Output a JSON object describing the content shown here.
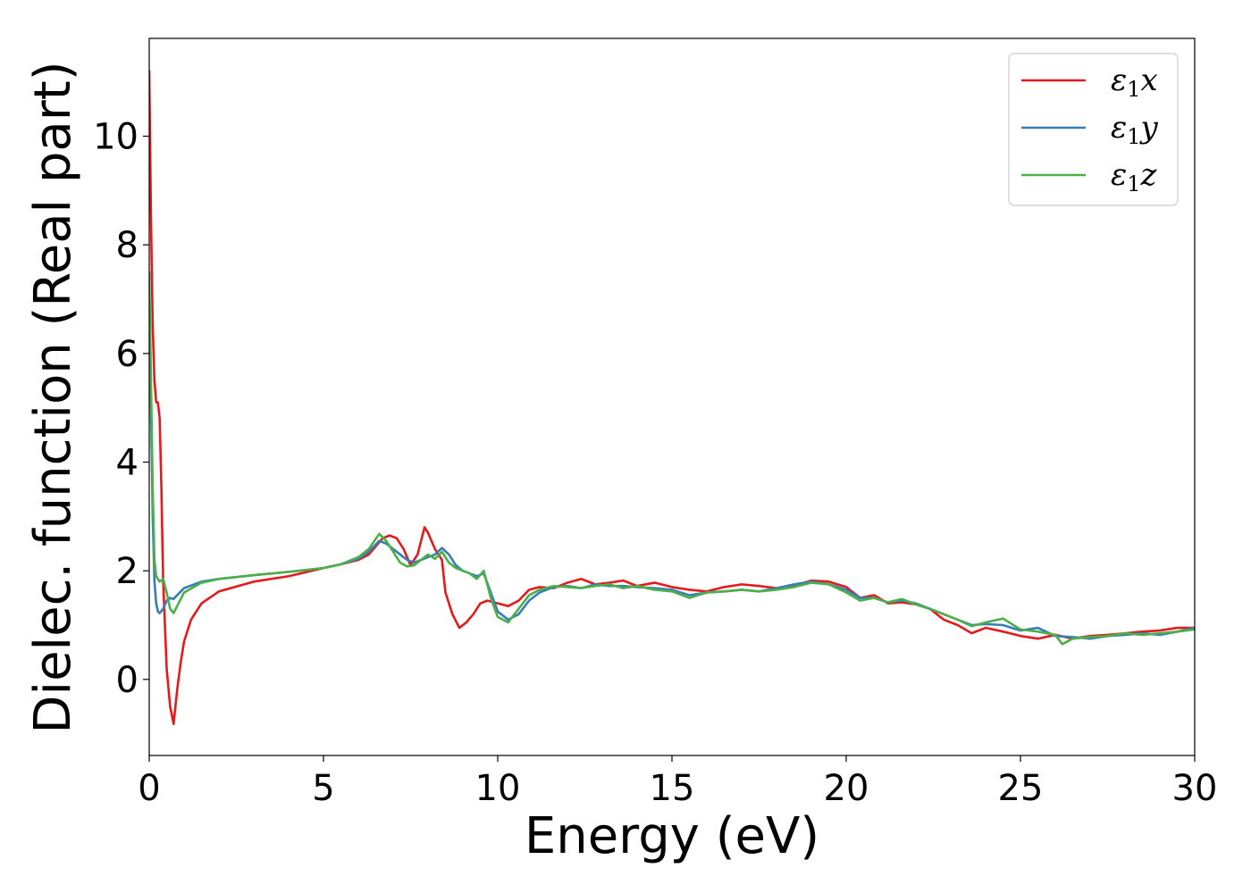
{
  "chart_data": {
    "type": "line",
    "xlabel": "Energy (eV)",
    "ylabel": "Dielec. function (Real part)",
    "xlim": [
      0,
      30
    ],
    "ylim": [
      -1.4,
      11.8
    ],
    "xticks": [
      0,
      5,
      10,
      15,
      20,
      25,
      30
    ],
    "yticks": [
      0,
      2,
      4,
      6,
      8,
      10
    ],
    "grid": false,
    "legend_position": "top-right",
    "series": [
      {
        "name": "ε1x",
        "color": "#e41a1c",
        "x": [
          0.0,
          0.05,
          0.1,
          0.15,
          0.2,
          0.25,
          0.3,
          0.35,
          0.4,
          0.5,
          0.6,
          0.7,
          0.8,
          0.9,
          1.0,
          1.2,
          1.5,
          2.0,
          3.0,
          4.0,
          5.0,
          5.5,
          6.0,
          6.3,
          6.5,
          6.7,
          6.9,
          7.1,
          7.3,
          7.5,
          7.7,
          7.9,
          8.0,
          8.2,
          8.4,
          8.5,
          8.7,
          8.9,
          9.1,
          9.3,
          9.5,
          9.7,
          10.0,
          10.3,
          10.6,
          10.9,
          11.2,
          11.6,
          12.0,
          12.4,
          12.8,
          13.2,
          13.6,
          14.0,
          14.5,
          15.0,
          15.5,
          16.0,
          16.5,
          17.0,
          17.5,
          18.0,
          18.5,
          19.0,
          19.5,
          20.0,
          20.4,
          20.8,
          21.2,
          21.6,
          22.0,
          22.4,
          22.8,
          23.2,
          23.6,
          24.0,
          24.5,
          25.0,
          25.5,
          26.0,
          26.5,
          27.0,
          27.5,
          28.0,
          28.5,
          29.0,
          29.5,
          30.0
        ],
        "y": [
          11.2,
          8.5,
          6.5,
          5.5,
          5.1,
          5.1,
          4.8,
          3.5,
          1.8,
          0.2,
          -0.5,
          -0.82,
          -0.2,
          0.3,
          0.7,
          1.1,
          1.4,
          1.62,
          1.8,
          1.9,
          2.05,
          2.12,
          2.2,
          2.3,
          2.45,
          2.6,
          2.65,
          2.6,
          2.4,
          2.1,
          2.3,
          2.8,
          2.7,
          2.4,
          2.2,
          1.6,
          1.2,
          0.95,
          1.05,
          1.2,
          1.4,
          1.45,
          1.4,
          1.35,
          1.45,
          1.65,
          1.7,
          1.68,
          1.78,
          1.85,
          1.75,
          1.78,
          1.82,
          1.72,
          1.78,
          1.7,
          1.65,
          1.62,
          1.7,
          1.75,
          1.72,
          1.68,
          1.72,
          1.82,
          1.8,
          1.7,
          1.5,
          1.55,
          1.4,
          1.42,
          1.38,
          1.3,
          1.1,
          1.0,
          0.85,
          0.95,
          0.88,
          0.8,
          0.75,
          0.82,
          0.75,
          0.8,
          0.82,
          0.85,
          0.88,
          0.9,
          0.95,
          0.95
        ]
      },
      {
        "name": "ε1y",
        "color": "#377eb8",
        "x": [
          0.0,
          0.05,
          0.1,
          0.15,
          0.2,
          0.25,
          0.3,
          0.4,
          0.5,
          0.6,
          0.7,
          0.8,
          1.0,
          1.5,
          2.0,
          3.0,
          4.0,
          5.0,
          5.5,
          6.0,
          6.3,
          6.6,
          6.8,
          7.0,
          7.2,
          7.4,
          7.6,
          7.8,
          8.0,
          8.2,
          8.4,
          8.6,
          8.8,
          9.0,
          9.2,
          9.4,
          9.6,
          9.8,
          10.0,
          10.3,
          10.6,
          10.9,
          11.2,
          11.6,
          12.0,
          12.4,
          12.8,
          13.2,
          13.6,
          14.0,
          14.5,
          15.0,
          15.5,
          16.0,
          16.5,
          17.0,
          17.5,
          18.0,
          18.5,
          19.0,
          19.5,
          20.0,
          20.4,
          20.8,
          21.2,
          21.6,
          22.0,
          22.4,
          22.8,
          23.2,
          23.6,
          24.0,
          24.5,
          25.0,
          25.5,
          26.0,
          26.5,
          27.0,
          27.5,
          28.0,
          28.5,
          29.0,
          29.5,
          30.0
        ],
        "y": [
          7.2,
          5.0,
          3.0,
          1.8,
          1.4,
          1.25,
          1.22,
          1.3,
          1.45,
          1.5,
          1.48,
          1.55,
          1.68,
          1.8,
          1.85,
          1.92,
          1.98,
          2.05,
          2.12,
          2.22,
          2.35,
          2.55,
          2.5,
          2.4,
          2.3,
          2.2,
          2.15,
          2.2,
          2.25,
          2.3,
          2.42,
          2.3,
          2.1,
          2.0,
          1.95,
          1.9,
          1.95,
          1.6,
          1.25,
          1.1,
          1.2,
          1.45,
          1.6,
          1.7,
          1.72,
          1.68,
          1.75,
          1.72,
          1.72,
          1.7,
          1.68,
          1.65,
          1.55,
          1.6,
          1.62,
          1.65,
          1.62,
          1.68,
          1.75,
          1.8,
          1.75,
          1.65,
          1.5,
          1.5,
          1.42,
          1.45,
          1.4,
          1.3,
          1.2,
          1.1,
          1.0,
          1.02,
          1.0,
          0.9,
          0.95,
          0.8,
          0.78,
          0.75,
          0.8,
          0.82,
          0.85,
          0.82,
          0.88,
          0.95
        ]
      },
      {
        "name": "ε1z",
        "color": "#4daf4a",
        "x": [
          0.0,
          0.05,
          0.1,
          0.15,
          0.2,
          0.25,
          0.3,
          0.4,
          0.5,
          0.6,
          0.7,
          0.8,
          1.0,
          1.5,
          2.0,
          3.0,
          4.0,
          5.0,
          5.5,
          6.0,
          6.3,
          6.6,
          6.8,
          7.0,
          7.2,
          7.4,
          7.6,
          7.8,
          8.0,
          8.2,
          8.4,
          8.6,
          8.8,
          9.0,
          9.2,
          9.4,
          9.6,
          9.8,
          10.0,
          10.3,
          10.6,
          10.9,
          11.2,
          11.6,
          12.0,
          12.4,
          12.8,
          13.2,
          13.6,
          14.0,
          14.5,
          15.0,
          15.5,
          16.0,
          16.5,
          17.0,
          17.5,
          18.0,
          18.5,
          19.0,
          19.5,
          20.0,
          20.4,
          20.8,
          21.2,
          21.6,
          22.0,
          22.4,
          22.8,
          23.2,
          23.6,
          24.0,
          24.5,
          25.0,
          25.5,
          26.0,
          26.2,
          26.5,
          27.0,
          27.5,
          28.0,
          28.5,
          29.0,
          29.5,
          30.0
        ],
        "y": [
          7.5,
          5.5,
          3.5,
          2.2,
          1.9,
          1.85,
          1.8,
          1.85,
          1.6,
          1.3,
          1.22,
          1.35,
          1.6,
          1.78,
          1.85,
          1.92,
          1.98,
          2.05,
          2.12,
          2.25,
          2.4,
          2.68,
          2.55,
          2.35,
          2.15,
          2.08,
          2.1,
          2.2,
          2.3,
          2.22,
          2.35,
          2.15,
          2.05,
          2.0,
          1.95,
          1.85,
          2.0,
          1.5,
          1.15,
          1.05,
          1.3,
          1.55,
          1.65,
          1.72,
          1.7,
          1.68,
          1.72,
          1.75,
          1.68,
          1.72,
          1.65,
          1.62,
          1.5,
          1.6,
          1.62,
          1.65,
          1.62,
          1.65,
          1.7,
          1.78,
          1.75,
          1.6,
          1.45,
          1.5,
          1.42,
          1.48,
          1.38,
          1.3,
          1.2,
          1.1,
          0.98,
          1.05,
          1.12,
          0.92,
          0.88,
          0.82,
          0.65,
          0.75,
          0.78,
          0.8,
          0.85,
          0.82,
          0.85,
          0.88,
          0.92
        ]
      }
    ]
  }
}
